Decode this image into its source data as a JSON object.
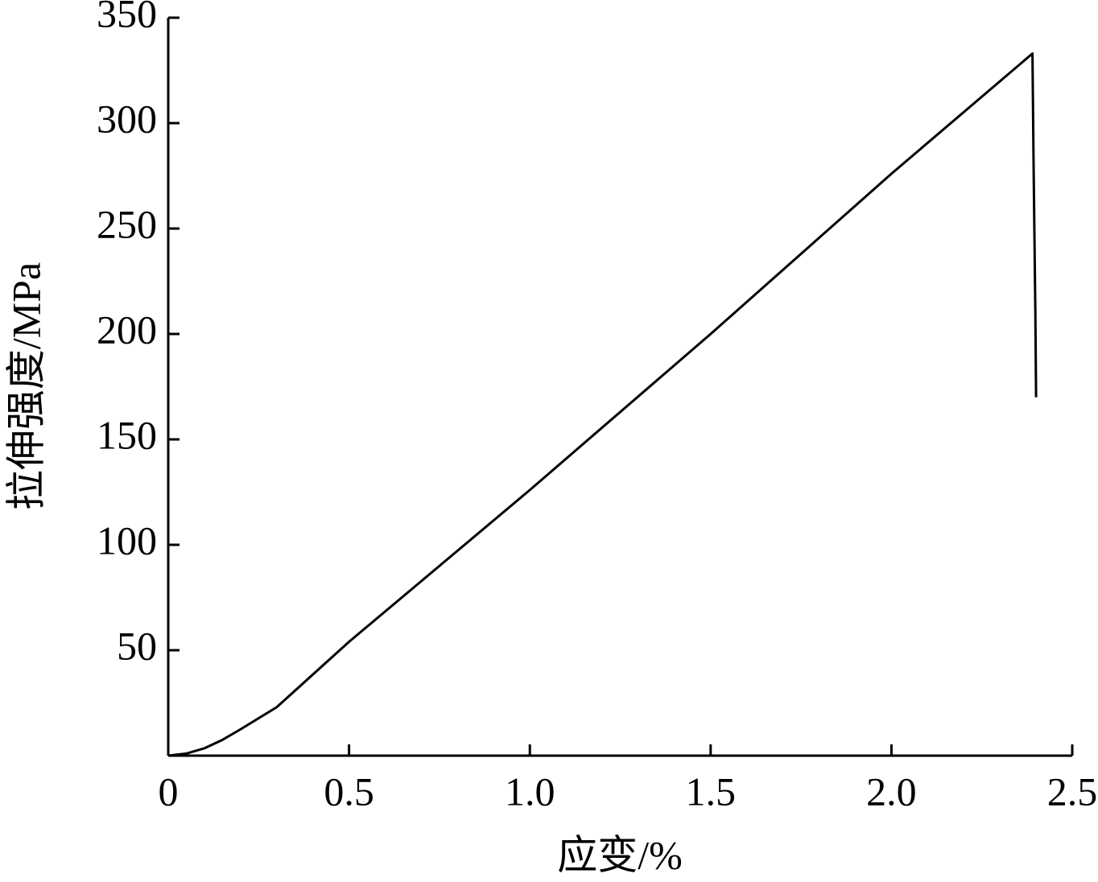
{
  "chart_data": {
    "type": "line",
    "x_label": "应变/%",
    "y_label": "拉伸强度/MPa",
    "x": [
      0,
      0.05,
      0.1,
      0.15,
      0.2,
      0.3,
      0.5,
      1.0,
      1.5,
      2.0,
      2.39,
      2.393,
      2.398,
      2.4
    ],
    "values": [
      0,
      1,
      3.5,
      7.5,
      12.5,
      23,
      54,
      126,
      200,
      276,
      333,
      282,
      210,
      170
    ],
    "color": "#000000",
    "xlim": [
      0,
      2.5
    ],
    "xticks": [
      0,
      0.5,
      {
        "value": 1,
        "label": "1.0"
      },
      1.5,
      {
        "value": 2,
        "label": "2.0"
      },
      2.5
    ],
    "ylim": [
      0,
      350
    ],
    "yticks": [
      50,
      100,
      150,
      200,
      250,
      300,
      350
    ],
    "grid": false
  }
}
